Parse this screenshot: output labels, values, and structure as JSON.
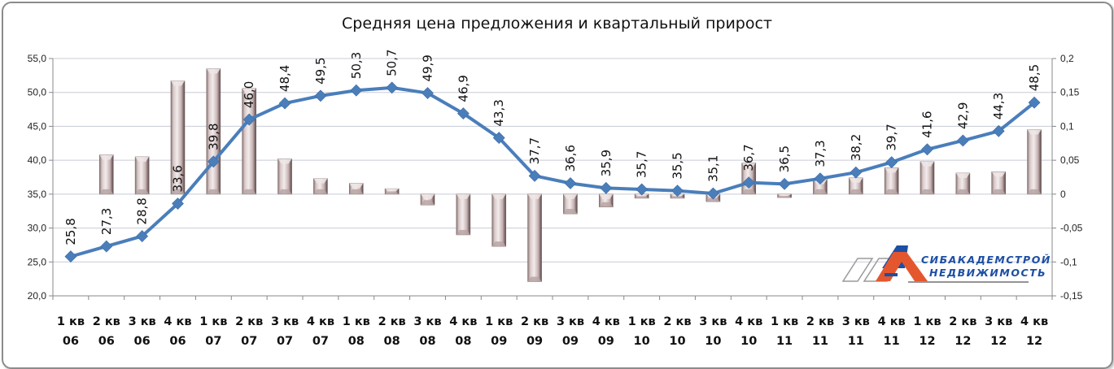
{
  "chart_data": {
    "type": "bar+line",
    "title": "Средняя цена предложения и квартальный  прирост",
    "xlabel": "",
    "ylabel": "",
    "categories": [
      "1 кв 06",
      "2 кв 06",
      "3 кв 06",
      "4 кв 06",
      "1 кв 07",
      "2 кв 07",
      "3 кв 07",
      "4 кв 07",
      "1 кв 08",
      "2 кв 08",
      "3 кв 08",
      "4 кв 08",
      "1 кв 09",
      "2 кв 09",
      "3 кв 09",
      "4 кв 09",
      "1 кв 10",
      "2 кв 10",
      "3 кв 10",
      "4 кв 10",
      "1 кв 11",
      "2 кв 11",
      "3 кв 11",
      "4 кв 11",
      "1 кв 12",
      "2 кв 12",
      "3 кв 12",
      "4 кв 12"
    ],
    "category_lines": [
      [
        "1 кв",
        "06"
      ],
      [
        "2 кв",
        "06"
      ],
      [
        "3 кв",
        "06"
      ],
      [
        "4 кв",
        "06"
      ],
      [
        "1 кв",
        "07"
      ],
      [
        "2 кв",
        "07"
      ],
      [
        "3 кв",
        "07"
      ],
      [
        "4 кв",
        "07"
      ],
      [
        "1 кв",
        "08"
      ],
      [
        "2 кв",
        "08"
      ],
      [
        "3 кв",
        "08"
      ],
      [
        "4 кв",
        "08"
      ],
      [
        "1 кв",
        "09"
      ],
      [
        "2 кв",
        "09"
      ],
      [
        "3 кв",
        "09"
      ],
      [
        "4 кв",
        "09"
      ],
      [
        "1 кв",
        "10"
      ],
      [
        "2 кв",
        "10"
      ],
      [
        "3 кв",
        "10"
      ],
      [
        "4 кв",
        "10"
      ],
      [
        "1 кв",
        "11"
      ],
      [
        "2 кв",
        "11"
      ],
      [
        "3 кв",
        "11"
      ],
      [
        "4 кв",
        "11"
      ],
      [
        "1 кв",
        "12"
      ],
      [
        "2 кв",
        "12"
      ],
      [
        "3 кв",
        "12"
      ],
      [
        "4 кв",
        "12"
      ]
    ],
    "series": [
      {
        "name": "Средняя цена предложения",
        "type": "line",
        "axis": "left",
        "color": "#4a7ebb",
        "marker": "diamond",
        "values": [
          25.8,
          27.3,
          28.8,
          33.6,
          39.8,
          46.0,
          48.4,
          49.5,
          50.3,
          50.7,
          49.9,
          46.9,
          43.3,
          37.7,
          36.6,
          35.9,
          35.7,
          35.5,
          35.1,
          36.7,
          36.5,
          37.3,
          38.2,
          39.7,
          41.6,
          42.9,
          44.3,
          48.5
        ],
        "labels": [
          "25,8",
          "27,3",
          "28,8",
          "33,6",
          "39,8",
          "46,0",
          "48,4",
          "49,5",
          "50,3",
          "50,7",
          "49,9",
          "46,9",
          "43,3",
          "37,7",
          "36,6",
          "35,9",
          "35,7",
          "35,5",
          "35,1",
          "36,7",
          "36,5",
          "37,3",
          "38,2",
          "39,7",
          "41,6",
          "42,9",
          "44,3",
          "48,5"
        ]
      },
      {
        "name": "Квартальный прирост",
        "type": "bar",
        "axis": "right",
        "color": "#d9c6c6",
        "values": [
          null,
          0.058,
          0.055,
          0.167,
          0.185,
          0.156,
          0.052,
          0.023,
          0.016,
          0.008,
          -0.016,
          -0.06,
          -0.077,
          -0.129,
          -0.029,
          -0.019,
          -0.006,
          -0.006,
          -0.011,
          0.046,
          -0.005,
          0.022,
          0.024,
          0.039,
          0.048,
          0.031,
          0.033,
          0.095
        ]
      }
    ],
    "left_axis": {
      "min": 20,
      "max": 55,
      "step": 5,
      "ticks": [
        "20,0",
        "25,0",
        "30,0",
        "35,0",
        "40,0",
        "45,0",
        "50,0",
        "55,0"
      ]
    },
    "right_axis": {
      "min": -0.15,
      "max": 0.2,
      "step": 0.05,
      "ticks": [
        "-0,15",
        "-0,1",
        "-0,05",
        "0",
        "0,05",
        "0,1",
        "0,15",
        "0,2"
      ]
    },
    "grid": true,
    "legend": "none"
  },
  "logo": {
    "line1": "СИБАКАДЕМСТРОЙ",
    "line2": "НЕДВИЖИМОСТЬ",
    "colors": {
      "blue": "#1d4fa3",
      "orange": "#e4572e",
      "grey": "#9a9a9a"
    }
  },
  "colors": {
    "line": "#4a7ebb",
    "bar": "#d9c6c6",
    "bar_dark": "#6e5a5a",
    "grid": "#c9ccd6",
    "axis": "#888888"
  }
}
